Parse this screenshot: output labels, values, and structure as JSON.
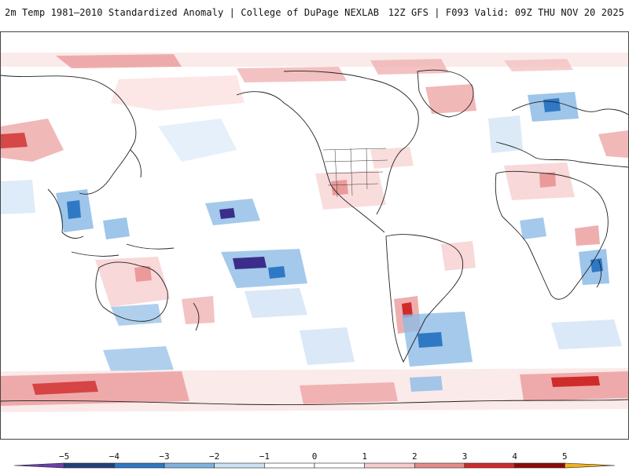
{
  "header": {
    "title": "2m Temp 1981–2010 Standardized Anomaly | College of DuPage NEXLAB",
    "run_info": "12Z GFS | F093 Valid: 09Z THU NOV 20 2025"
  },
  "legend": {
    "ticks": [
      "−5",
      "−4",
      "−3",
      "−2",
      "−1",
      "0",
      "1",
      "2",
      "3",
      "4",
      "5"
    ],
    "colors": [
      "#6a3fa8",
      "#23407a",
      "#2f79c4",
      "#7fb2e0",
      "#cde0f3",
      "#ffffff",
      "#ffffff",
      "#f6cccc",
      "#e58b8b",
      "#cf2b2b",
      "#8c0a0a",
      "#f3b21c"
    ]
  },
  "map": {
    "colors": {
      "ocean_tint": "#fbeaea",
      "cold_light": "#d6e6f6",
      "cold_mid": "#8dbbe6",
      "cold_strong": "#2f79c4",
      "cold_extreme": "#3b2e8a",
      "warm_light": "#f7d4d4",
      "warm_mid": "#eb9a9a",
      "warm_strong": "#cf2b2b",
      "coast": "#222222"
    }
  }
}
